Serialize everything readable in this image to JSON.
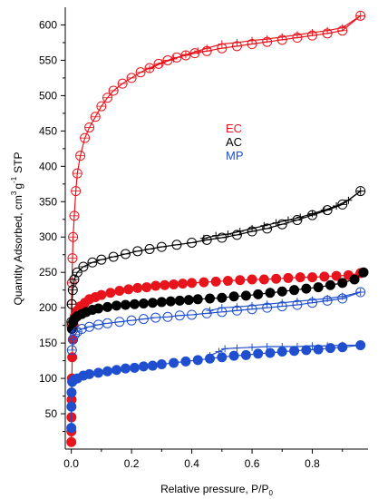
{
  "chart_data": {
    "type": "scatter",
    "title": "",
    "xlabel": "Relative pressure, P/P",
    "xlabel_subscript": "0",
    "ylabel_main": "Quantity Adsorbed, cm",
    "ylabel_sup": "3",
    "ylabel_g": "g",
    "ylabel_sup2": "-1",
    "ylabel_end": "STP",
    "xlim": [
      -0.02,
      0.985
    ],
    "ylim": [
      0,
      625
    ],
    "xticks": [
      "0.0",
      "0.2",
      "0.4",
      "0.6",
      "0.8"
    ],
    "yticks": [
      "50",
      "100",
      "150",
      "200",
      "250",
      "300",
      "350",
      "400",
      "450",
      "500",
      "550",
      "600"
    ],
    "xtick_values": [
      0,
      0.2,
      0.4,
      0.6,
      0.8
    ],
    "ytick_values": [
      50,
      100,
      150,
      200,
      250,
      300,
      350,
      400,
      450,
      500,
      550,
      600
    ],
    "grid": false,
    "legend": {
      "placement": "center-right",
      "entries": [
        {
          "label": "EC",
          "color": "#e8141c"
        },
        {
          "label": "AC",
          "color": "#000000"
        },
        {
          "label": "MP",
          "color": "#1f4fcf"
        }
      ]
    },
    "series": [
      {
        "name": "EC",
        "kind": "open",
        "color": "#e8141c",
        "x": [
          0.0005,
          0.001,
          0.002,
          0.004,
          0.006,
          0.01,
          0.015,
          0.02,
          0.03,
          0.045,
          0.06,
          0.08,
          0.1,
          0.12,
          0.14,
          0.17,
          0.2,
          0.23,
          0.26,
          0.29,
          0.32,
          0.35,
          0.38,
          0.41,
          0.45,
          0.5,
          0.55,
          0.6,
          0.65,
          0.7,
          0.75,
          0.8,
          0.85,
          0.9,
          0.96
        ],
        "y": [
          175,
          205,
          235,
          270,
          300,
          330,
          365,
          390,
          415,
          440,
          455,
          470,
          485,
          497,
          507,
          517,
          525,
          533,
          539,
          545,
          550,
          554,
          557,
          560,
          563,
          567,
          570,
          573,
          576,
          579,
          582,
          585,
          588,
          592,
          613
        ],
        "des_x": [
          0.96,
          0.9,
          0.85,
          0.8,
          0.75,
          0.7,
          0.65,
          0.6,
          0.55,
          0.5,
          0.45,
          0.42,
          0.38,
          0.34,
          0.3,
          0.26
        ],
        "des_y": [
          613,
          596,
          592,
          589,
          586,
          583,
          580,
          578,
          575,
          573,
          567,
          563,
          558,
          552,
          546,
          538
        ]
      },
      {
        "name": "AC",
        "kind": "open",
        "color": "#000000",
        "x": [
          0.0005,
          0.002,
          0.005,
          0.01,
          0.02,
          0.04,
          0.07,
          0.1,
          0.14,
          0.18,
          0.22,
          0.26,
          0.3,
          0.35,
          0.4,
          0.45,
          0.5,
          0.55,
          0.6,
          0.65,
          0.7,
          0.75,
          0.8,
          0.85,
          0.9,
          0.96
        ],
        "y": [
          180,
          205,
          225,
          240,
          250,
          258,
          264,
          268,
          272,
          276,
          280,
          283,
          286,
          289,
          292,
          296,
          299,
          303,
          308,
          312,
          318,
          324,
          331,
          338,
          346,
          365
        ],
        "des_x": [
          0.96,
          0.92,
          0.88,
          0.84,
          0.8,
          0.76,
          0.72,
          0.68,
          0.64,
          0.6,
          0.56,
          0.52,
          0.48,
          0.44
        ],
        "des_y": [
          365,
          352,
          344,
          338,
          333,
          328,
          324,
          320,
          316,
          312,
          308,
          304,
          302,
          298
        ]
      },
      {
        "name": "EC",
        "kind": "filled",
        "color": "#e8141c",
        "x": [
          0.0001,
          0.0003,
          0.0006,
          0.001,
          0.002,
          0.003,
          0.005,
          0.008,
          0.012,
          0.02,
          0.03,
          0.045,
          0.06,
          0.08,
          0.1,
          0.13,
          0.16,
          0.19,
          0.22,
          0.25,
          0.28,
          0.31,
          0.34,
          0.37,
          0.4,
          0.44,
          0.48,
          0.52,
          0.56,
          0.6,
          0.64,
          0.68,
          0.72,
          0.76,
          0.8,
          0.84,
          0.88,
          0.92,
          0.96
        ],
        "y": [
          10,
          25,
          45,
          70,
          100,
          130,
          155,
          175,
          188,
          196,
          202,
          207,
          212,
          215,
          218,
          221,
          224,
          226,
          228,
          229,
          231,
          232,
          233,
          234,
          235,
          236,
          237,
          238,
          239,
          240,
          240,
          241,
          242,
          243,
          243,
          244,
          245,
          246,
          249
        ]
      },
      {
        "name": "AC",
        "kind": "filled",
        "color": "#000000",
        "x": [
          0.002,
          0.006,
          0.012,
          0.02,
          0.035,
          0.05,
          0.07,
          0.09,
          0.12,
          0.15,
          0.18,
          0.21,
          0.24,
          0.27,
          0.3,
          0.33,
          0.36,
          0.39,
          0.42,
          0.46,
          0.5,
          0.54,
          0.58,
          0.62,
          0.66,
          0.7,
          0.74,
          0.78,
          0.82,
          0.86,
          0.9,
          0.94,
          0.97
        ],
        "y": [
          170,
          180,
          185,
          188,
          191,
          194,
          197,
          199,
          201,
          203,
          204,
          205,
          206,
          207,
          208,
          209,
          210,
          211,
          212,
          213,
          214,
          216,
          217,
          219,
          221,
          223,
          225,
          227,
          229,
          232,
          235,
          240,
          250
        ]
      },
      {
        "name": "MP",
        "kind": "open",
        "color": "#1f4fcf",
        "x": [
          0.002,
          0.006,
          0.012,
          0.02,
          0.035,
          0.06,
          0.09,
          0.12,
          0.16,
          0.2,
          0.24,
          0.28,
          0.32,
          0.36,
          0.4,
          0.45,
          0.5,
          0.55,
          0.6,
          0.65,
          0.7,
          0.75,
          0.8,
          0.85,
          0.9,
          0.96
        ],
        "y": [
          140,
          155,
          162,
          166,
          170,
          173,
          176,
          178,
          180,
          182,
          184,
          186,
          187,
          189,
          190,
          192,
          194,
          196,
          198,
          200,
          202,
          204,
          207,
          210,
          213,
          222
        ],
        "des_x": [
          0.96,
          0.9,
          0.85,
          0.8,
          0.75,
          0.7,
          0.65,
          0.6,
          0.55,
          0.5,
          0.46
        ],
        "des_y": [
          222,
          216,
          213,
          211,
          209,
          207,
          205,
          203,
          201,
          200,
          196
        ]
      },
      {
        "name": "MP",
        "kind": "filled",
        "color": "#1f4fcf",
        "x": [
          0.0001,
          0.0005,
          0.001,
          0.003,
          0.008,
          0.02,
          0.04,
          0.06,
          0.09,
          0.12,
          0.15,
          0.18,
          0.21,
          0.24,
          0.27,
          0.3,
          0.34,
          0.38,
          0.42,
          0.46,
          0.5,
          0.54,
          0.58,
          0.62,
          0.66,
          0.7,
          0.74,
          0.78,
          0.82,
          0.86,
          0.9,
          0.96
        ],
        "y": [
          30,
          60,
          80,
          95,
          98,
          100,
          104,
          106,
          108,
          110,
          112,
          114,
          115,
          117,
          118,
          120,
          122,
          124,
          126,
          128,
          130,
          132,
          133,
          135,
          136,
          138,
          139,
          140,
          141,
          143,
          144,
          147
        ],
        "des_x": [
          0.96,
          0.9,
          0.85,
          0.8,
          0.75,
          0.7,
          0.65,
          0.6,
          0.55,
          0.51,
          0.49,
          0.46
        ],
        "des_y": [
          147,
          147,
          146,
          146,
          145,
          145,
          145,
          144,
          143,
          142,
          138,
          132
        ]
      }
    ]
  }
}
